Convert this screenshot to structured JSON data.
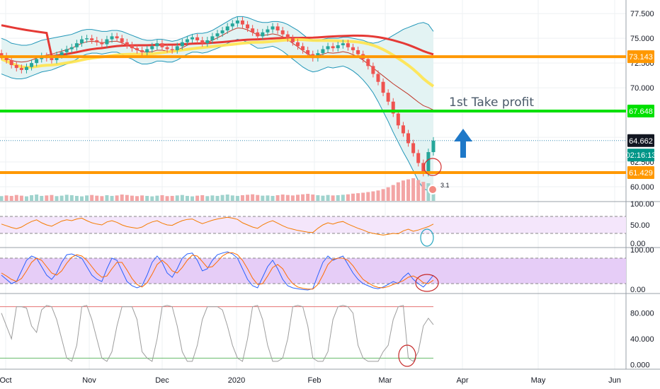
{
  "chart_data": {
    "type": "candlestick",
    "main": {
      "y_ticks": [
        "77.500",
        "75.000",
        "72.500",
        "70.000",
        "67.500",
        "65.000",
        "62.500",
        "60.000"
      ],
      "y_range": [
        58.5,
        78.3
      ],
      "x_labels": [
        "Oct",
        "Nov",
        "Dec",
        "2020",
        "Feb",
        "Mar",
        "Apr",
        "May",
        "Jun"
      ],
      "price_tags": [
        {
          "label": "73.143",
          "value": 73.143,
          "color": "#ff9800"
        },
        {
          "label": "67.648",
          "value": 67.648,
          "color": "#00e000"
        },
        {
          "label": "64.662",
          "value": 64.662,
          "color": "#131722"
        },
        {
          "label": "02:16:13",
          "value": 63.2,
          "color": "#009688"
        },
        {
          "label": "61.429",
          "value": 61.429,
          "color": "#ff9800"
        }
      ],
      "horizontal_lines": [
        {
          "value": 73.143,
          "color": "#ff9800"
        },
        {
          "value": 67.648,
          "color": "#00e000"
        },
        {
          "value": 61.429,
          "color": "#ff9800"
        }
      ],
      "dotted_line": 64.662,
      "annotation": "1st Take profit",
      "marker_label": "3.1",
      "closes": [
        73.2,
        72.8,
        72.3,
        72.0,
        71.8,
        72.1,
        72.5,
        72.9,
        73.2,
        73.0,
        72.8,
        73.3,
        73.6,
        73.9,
        74.1,
        74.5,
        74.9,
        75.0,
        74.8,
        74.6,
        74.4,
        74.9,
        75.2,
        75.0,
        74.6,
        74.3,
        74.0,
        73.8,
        73.6,
        73.9,
        74.2,
        74.5,
        74.1,
        73.9,
        73.8,
        74.2,
        74.6,
        74.9,
        75.1,
        74.8,
        74.5,
        74.8,
        75.2,
        75.5,
        75.8,
        76.2,
        76.5,
        76.8,
        76.4,
        76.0,
        75.6,
        75.2,
        75.6,
        75.9,
        76.2,
        75.8,
        75.4,
        75.0,
        74.6,
        74.2,
        73.8,
        73.4,
        73.0,
        73.5,
        73.9,
        74.2,
        74.0,
        74.3,
        74.5,
        74.1,
        73.8,
        73.4,
        72.9,
        72.2,
        71.4,
        70.6,
        69.5,
        68.6,
        67.4,
        66.2,
        65.4,
        64.4,
        63.4,
        62.4,
        61.4,
        63.5,
        64.66
      ],
      "upper_band": [
        75.0,
        74.8,
        74.5,
        74.4,
        74.3,
        74.3,
        74.4,
        74.6,
        74.8,
        74.9,
        75.0,
        75.1,
        75.2,
        75.3,
        75.4,
        75.6,
        75.8,
        75.9,
        75.9,
        75.8,
        75.7,
        75.7,
        75.8,
        75.8,
        75.7,
        75.5,
        75.3,
        75.1,
        74.9,
        74.8,
        74.8,
        74.9,
        74.9,
        74.8,
        74.7,
        74.8,
        75.0,
        75.2,
        75.4,
        75.5,
        75.5,
        75.6,
        75.8,
        76.1,
        76.4,
        76.7,
        77.0,
        77.2,
        77.2,
        77.1,
        76.9,
        76.7,
        76.6,
        76.6,
        76.7,
        76.7,
        76.6,
        76.4,
        76.1,
        75.8,
        75.4,
        75.0,
        74.8,
        74.8,
        74.9,
        75.0,
        75.0,
        75.0,
        75.1,
        75.1,
        75.0,
        74.9,
        74.8,
        74.6,
        74.5,
        74.6,
        74.8,
        75.0,
        75.3,
        75.6,
        75.9,
        76.1,
        76.3,
        76.5,
        76.6,
        76.4,
        75.7
      ],
      "lower_band": [
        71.4,
        71.2,
        71.0,
        70.9,
        70.9,
        71.0,
        71.2,
        71.4,
        71.6,
        71.7,
        71.8,
        72.0,
        72.2,
        72.4,
        72.6,
        72.9,
        73.2,
        73.4,
        73.5,
        73.5,
        73.4,
        73.5,
        73.6,
        73.6,
        73.4,
        73.1,
        72.9,
        72.6,
        72.4,
        72.4,
        72.5,
        72.7,
        72.7,
        72.6,
        72.6,
        72.8,
        73.1,
        73.4,
        73.6,
        73.6,
        73.5,
        73.6,
        73.8,
        74.0,
        74.2,
        74.5,
        74.7,
        74.9,
        74.8,
        74.6,
        74.3,
        74.0,
        74.0,
        74.1,
        74.2,
        74.0,
        73.7,
        73.3,
        72.9,
        72.5,
        72.1,
        71.8,
        71.6,
        71.7,
        71.9,
        72.1,
        72.0,
        72.1,
        72.2,
        72.0,
        71.7,
        71.3,
        70.8,
        70.2,
        69.5,
        68.6,
        67.6,
        66.6,
        65.5,
        64.5,
        63.5,
        62.6,
        61.6,
        60.6,
        59.8,
        59.6,
        59.8
      ],
      "volume": [
        2.1,
        2.4,
        2.2,
        2.6,
        2.3,
        2.0,
        2.5,
        2.8,
        2.2,
        2.4,
        2.6,
        2.1,
        2.3,
        2.7,
        2.5,
        2.2,
        2.0,
        2.4,
        2.6,
        2.3,
        2.1,
        2.5,
        2.2,
        2.4,
        2.8,
        2.6,
        2.3,
        2.1,
        2.4,
        2.2,
        2.0,
        2.3,
        2.5,
        2.1,
        2.2,
        2.4,
        2.6,
        2.2,
        2.0,
        2.3,
        2.5,
        2.1,
        2.4,
        2.2,
        2.6,
        2.8,
        2.4,
        2.2,
        2.5,
        2.7,
        2.9,
        2.6,
        2.3,
        2.4,
        2.2,
        2.5,
        2.8,
        2.6,
        2.4,
        2.7,
        2.9,
        3.1,
        2.8,
        2.5,
        2.3,
        2.6,
        2.4,
        2.5,
        2.7,
        2.9,
        3.2,
        3.4,
        3.6,
        3.9,
        4.2,
        4.6,
        5.2,
        6.0,
        7.0,
        8.2,
        9.0,
        9.5,
        10.0,
        9.2,
        8.4,
        7.8,
        6.5
      ]
    },
    "panels": [
      {
        "name": "rsi",
        "y_ticks": [
          "100.00",
          "50.00",
          "0.00"
        ],
        "range": [
          0,
          100
        ],
        "band": [
          30,
          70
        ],
        "values": [
          52,
          48,
          44,
          41,
          45,
          52,
          58,
          62,
          55,
          50,
          47,
          53,
          59,
          62,
          60,
          64,
          66,
          60,
          55,
          52,
          50,
          57,
          60,
          56,
          50,
          46,
          44,
          42,
          45,
          52,
          57,
          60,
          54,
          50,
          49,
          55,
          60,
          63,
          64,
          58,
          53,
          57,
          61,
          64,
          66,
          68,
          66,
          63,
          55,
          50,
          45,
          42,
          50,
          56,
          60,
          54,
          48,
          43,
          40,
          37,
          35,
          33,
          32,
          42,
          50,
          55,
          52,
          56,
          58,
          52,
          47,
          42,
          38,
          33,
          30,
          28,
          26,
          28,
          30,
          29,
          36,
          40,
          35,
          38,
          42,
          46,
          52
        ]
      },
      {
        "name": "stoch-rsi",
        "y_ticks": [
          "100.00",
          "0.00"
        ],
        "range": [
          0,
          100
        ],
        "band": [
          20,
          80
        ],
        "k": [
          40,
          30,
          20,
          25,
          50,
          75,
          85,
          80,
          60,
          40,
          30,
          45,
          70,
          88,
          90,
          85,
          80,
          60,
          40,
          30,
          25,
          55,
          80,
          75,
          50,
          25,
          15,
          10,
          15,
          40,
          70,
          85,
          70,
          45,
          35,
          55,
          80,
          90,
          92,
          75,
          50,
          55,
          75,
          88,
          92,
          95,
          90,
          80,
          55,
          30,
          15,
          10,
          35,
          60,
          75,
          55,
          30,
          15,
          10,
          8,
          6,
          5,
          8,
          40,
          70,
          85,
          75,
          80,
          85,
          65,
          45,
          30,
          20,
          15,
          10,
          8,
          12,
          18,
          25,
          20,
          35,
          45,
          30,
          20,
          12,
          25,
          40
        ],
        "d": [
          45,
          38,
          30,
          25,
          32,
          50,
          70,
          80,
          75,
          60,
          45,
          40,
          50,
          68,
          82,
          88,
          85,
          75,
          60,
          45,
          35,
          38,
          55,
          70,
          70,
          52,
          32,
          18,
          12,
          22,
          42,
          65,
          75,
          65,
          50,
          45,
          58,
          75,
          87,
          85,
          72,
          58,
          60,
          72,
          85,
          92,
          93,
          88,
          75,
          55,
          33,
          18,
          20,
          38,
          58,
          65,
          55,
          35,
          20,
          12,
          9,
          7,
          7,
          18,
          40,
          65,
          77,
          80,
          80,
          75,
          62,
          45,
          30,
          22,
          15,
          11,
          10,
          13,
          18,
          22,
          27,
          35,
          38,
          32,
          22,
          20,
          28
        ]
      },
      {
        "name": "williams",
        "y_ticks": [
          "80.000",
          "40.000",
          "0.000"
        ],
        "range": [
          -5,
          105
        ],
        "levels": [
          90,
          10
        ],
        "values": [
          80,
          60,
          40,
          90,
          90,
          88,
          60,
          50,
          85,
          92,
          90,
          70,
          40,
          10,
          5,
          30,
          90,
          92,
          70,
          40,
          10,
          5,
          20,
          60,
          90,
          90,
          90,
          70,
          20,
          10,
          5,
          40,
          90,
          92,
          90,
          60,
          20,
          5,
          5,
          30,
          70,
          90,
          90,
          90,
          85,
          60,
          30,
          10,
          5,
          40,
          90,
          92,
          70,
          30,
          5,
          5,
          10,
          40,
          90,
          92,
          90,
          60,
          10,
          5,
          5,
          20,
          70,
          90,
          92,
          90,
          80,
          30,
          10,
          5,
          5,
          5,
          20,
          30,
          70,
          90,
          92,
          10,
          5,
          20,
          60,
          72,
          62
        ]
      }
    ]
  }
}
